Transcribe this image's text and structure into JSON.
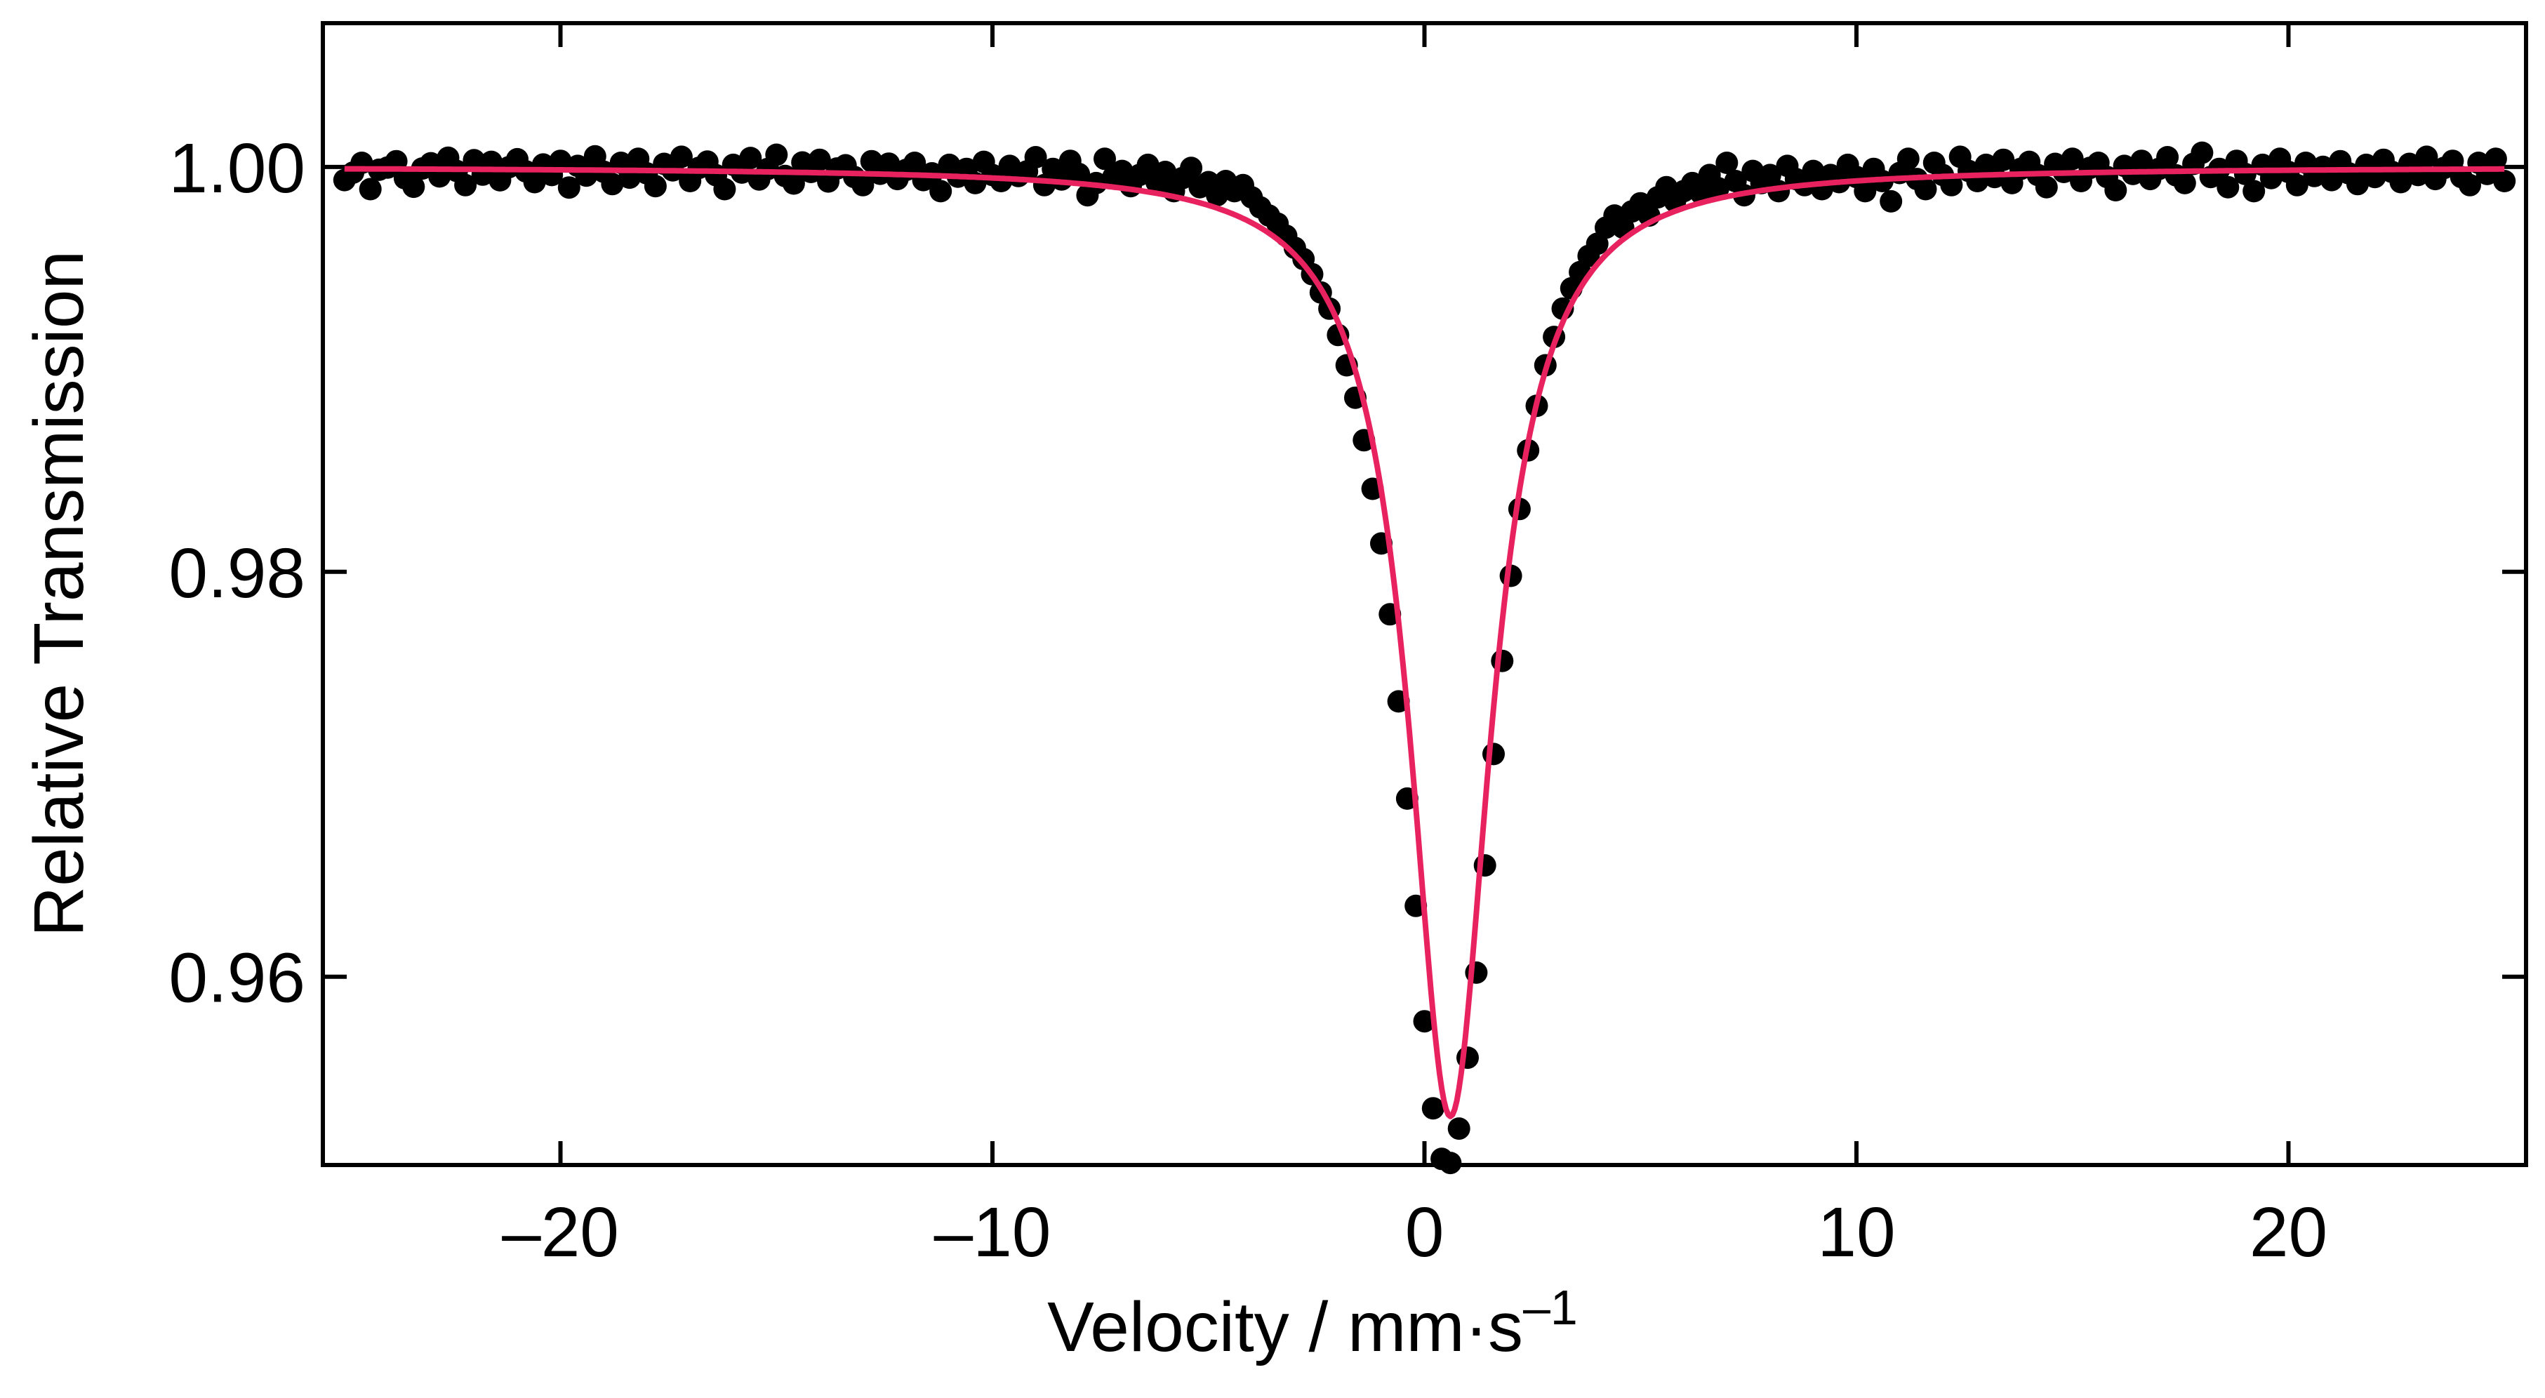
{
  "chart_data": {
    "type": "scatter",
    "title": "",
    "xlabel": "Velocity / mm·s",
    "xlabel_superscript": "–1",
    "ylabel": "Relative Transmission",
    "xlim": [
      -25.5,
      25.5
    ],
    "ylim": [
      0.9507,
      1.0071
    ],
    "x_ticks": [
      -20,
      -10,
      0,
      10,
      20
    ],
    "x_tick_labels": [
      "–20",
      "–10",
      "0",
      "10",
      "20"
    ],
    "y_ticks": [
      0.96,
      0.98,
      1.0
    ],
    "y_tick_labels": [
      "0.96",
      "0.98",
      "1.00"
    ],
    "grid": false,
    "legend": "none",
    "series": [
      {
        "kind": "points",
        "color": "#000000",
        "points": [
          [
            -25.0,
            0.99935
          ],
          [
            -24.8,
            0.99972
          ],
          [
            -24.6,
            1.0002
          ],
          [
            -24.4,
            0.9989
          ],
          [
            -24.2,
            0.99986
          ],
          [
            -24.0,
            0.99997
          ],
          [
            -23.8,
            1.00028
          ],
          [
            -23.6,
            0.99944
          ],
          [
            -23.4,
            0.99902
          ],
          [
            -23.2,
            0.99992
          ],
          [
            -23.0,
            1.00018
          ],
          [
            -22.8,
            0.99953
          ],
          [
            -22.6,
            1.00045
          ],
          [
            -22.4,
            0.9998
          ],
          [
            -22.2,
            0.9991
          ],
          [
            -22.0,
            1.00033
          ],
          [
            -21.8,
            0.99962
          ],
          [
            -21.6,
            1.00025
          ],
          [
            -21.4,
            0.99934
          ],
          [
            -21.2,
            0.99998
          ],
          [
            -21.0,
            1.00038
          ],
          [
            -20.8,
            0.99978
          ],
          [
            -20.6,
            0.99925
          ],
          [
            -20.4,
            1.00012
          ],
          [
            -20.2,
            0.9996
          ],
          [
            -20.0,
            1.0003
          ],
          [
            -19.8,
            0.99898
          ],
          [
            -19.6,
            1.00005
          ],
          [
            -19.4,
            0.99957
          ],
          [
            -19.2,
            1.00052
          ],
          [
            -19.0,
            0.99976
          ],
          [
            -18.8,
            0.99915
          ],
          [
            -18.6,
            1.0002
          ],
          [
            -18.4,
            0.99947
          ],
          [
            -18.2,
            1.0004
          ],
          [
            -18.0,
            0.99968
          ],
          [
            -17.8,
            0.99905
          ],
          [
            -17.6,
            1.00015
          ],
          [
            -17.4,
            0.99983
          ],
          [
            -17.2,
            1.0005
          ],
          [
            -17.0,
            0.9993
          ],
          [
            -16.8,
            0.99995
          ],
          [
            -16.6,
            1.00026
          ],
          [
            -16.4,
            0.99959
          ],
          [
            -16.2,
            0.9989
          ],
          [
            -16.0,
            1.0001
          ],
          [
            -15.8,
            0.99972
          ],
          [
            -15.6,
            1.00044
          ],
          [
            -15.4,
            0.99938
          ],
          [
            -15.2,
            0.9999
          ],
          [
            -15.0,
            1.0006
          ],
          [
            -14.8,
            0.99955
          ],
          [
            -14.6,
            0.99918
          ],
          [
            -14.4,
            1.00022
          ],
          [
            -14.2,
            0.99975
          ],
          [
            -14.0,
            1.00035
          ],
          [
            -13.8,
            0.99928
          ],
          [
            -13.6,
            0.99992
          ],
          [
            -13.4,
            1.00008
          ],
          [
            -13.2,
            0.9995
          ],
          [
            -13.0,
            0.9991
          ],
          [
            -12.8,
            1.00028
          ],
          [
            -12.6,
            0.99966
          ],
          [
            -12.4,
            1.00016
          ],
          [
            -12.2,
            0.9994
          ],
          [
            -12.0,
            0.99985
          ],
          [
            -11.8,
            1.0002
          ],
          [
            -11.6,
            0.99935
          ],
          [
            -11.4,
            0.99968
          ],
          [
            -11.2,
            0.9988
          ],
          [
            -11.0,
            1.0001
          ],
          [
            -10.8,
            0.99952
          ],
          [
            -10.6,
            0.9999
          ],
          [
            -10.4,
            0.9992
          ],
          [
            -10.2,
            1.00025
          ],
          [
            -10.0,
            0.9996
          ],
          [
            -9.8,
            0.9993
          ],
          [
            -9.6,
            1.00005
          ],
          [
            -9.4,
            0.99955
          ],
          [
            -9.2,
            0.99978
          ],
          [
            -9.0,
            1.00048
          ],
          [
            -8.8,
            0.9991
          ],
          [
            -8.6,
            0.9999
          ],
          [
            -8.4,
            0.99938
          ],
          [
            -8.2,
            1.0003
          ],
          [
            -8.0,
            0.99965
          ],
          [
            -7.8,
            0.9986
          ],
          [
            -7.6,
            0.9992
          ],
          [
            -7.4,
            1.0004
          ],
          [
            -7.2,
            0.9995
          ],
          [
            -7.0,
            0.9998
          ],
          [
            -6.8,
            0.99905
          ],
          [
            -6.6,
            0.9996
          ],
          [
            -6.4,
            1.0001
          ],
          [
            -6.2,
            0.99925
          ],
          [
            -6.0,
            0.99975
          ],
          [
            -5.8,
            0.9988
          ],
          [
            -5.6,
            0.99945
          ],
          [
            -5.4,
            0.99995
          ],
          [
            -5.2,
            0.999
          ],
          [
            -5.0,
            0.99925
          ],
          [
            -4.8,
            0.9986
          ],
          [
            -4.6,
            0.9993
          ],
          [
            -4.4,
            0.9988
          ],
          [
            -4.2,
            0.9991
          ],
          [
            -4.0,
            0.9985
          ],
          [
            -3.8,
            0.998
          ],
          [
            -3.6,
            0.9976
          ],
          [
            -3.4,
            0.9972
          ],
          [
            -3.2,
            0.9966
          ],
          [
            -3.0,
            0.996
          ],
          [
            -2.8,
            0.99545
          ],
          [
            -2.6,
            0.9947
          ],
          [
            -2.4,
            0.9938
          ],
          [
            -2.2,
            0.993
          ],
          [
            -2.0,
            0.9917
          ],
          [
            -1.8,
            0.9902
          ],
          [
            -1.6,
            0.9886
          ],
          [
            -1.4,
            0.9865
          ],
          [
            -1.2,
            0.9841
          ],
          [
            -1.0,
            0.9814
          ],
          [
            -0.8,
            0.9779
          ],
          [
            -0.6,
            0.9736
          ],
          [
            -0.4,
            0.9688
          ],
          [
            -0.2,
            0.9635
          ],
          [
            0.0,
            0.9578
          ],
          [
            0.2,
            0.9535
          ],
          [
            0.4,
            0.951
          ],
          [
            0.6,
            0.9508
          ],
          [
            0.8,
            0.9525
          ],
          [
            1.0,
            0.956
          ],
          [
            1.2,
            0.9602
          ],
          [
            1.4,
            0.9655
          ],
          [
            1.6,
            0.971
          ],
          [
            1.8,
            0.9756
          ],
          [
            2.0,
            0.9798
          ],
          [
            2.2,
            0.9831
          ],
          [
            2.4,
            0.986
          ],
          [
            2.6,
            0.9882
          ],
          [
            2.8,
            0.9902
          ],
          [
            3.0,
            0.9916
          ],
          [
            3.2,
            0.993
          ],
          [
            3.4,
            0.994
          ],
          [
            3.6,
            0.9948
          ],
          [
            3.8,
            0.9956
          ],
          [
            4.0,
            0.9962
          ],
          [
            4.2,
            0.997
          ],
          [
            4.4,
            0.9976
          ],
          [
            4.6,
            0.997
          ],
          [
            4.8,
            0.9978
          ],
          [
            5.0,
            0.9982
          ],
          [
            5.2,
            0.9976
          ],
          [
            5.4,
            0.9985
          ],
          [
            5.6,
            0.999
          ],
          [
            5.8,
            0.9983
          ],
          [
            6.0,
            0.9988
          ],
          [
            6.2,
            0.9992
          ],
          [
            6.4,
            0.9987
          ],
          [
            6.6,
            0.9996
          ],
          [
            6.8,
            0.99895
          ],
          [
            7.0,
            1.0002
          ],
          [
            7.2,
            0.9993
          ],
          [
            7.4,
            0.9986
          ],
          [
            7.6,
            0.9998
          ],
          [
            7.8,
            0.9992
          ],
          [
            8.0,
            0.9996
          ],
          [
            8.2,
            0.9988
          ],
          [
            8.4,
            1.00005
          ],
          [
            8.6,
            0.9994
          ],
          [
            8.8,
            0.9991
          ],
          [
            9.0,
            0.9998
          ],
          [
            9.2,
            0.9989
          ],
          [
            9.4,
            0.9996
          ],
          [
            9.6,
            0.99925
          ],
          [
            9.8,
            1.0001
          ],
          [
            10.0,
            0.9995
          ],
          [
            10.2,
            0.9988
          ],
          [
            10.4,
            0.9999
          ],
          [
            10.6,
            0.9993
          ],
          [
            10.8,
            0.9983
          ],
          [
            11.0,
            0.9997
          ],
          [
            11.2,
            1.0004
          ],
          [
            11.4,
            0.9994
          ],
          [
            11.6,
            0.9989
          ],
          [
            11.8,
            1.0002
          ],
          [
            12.0,
            0.9996
          ],
          [
            12.2,
            0.9991
          ],
          [
            12.4,
            1.0005
          ],
          [
            12.6,
            0.9998
          ],
          [
            12.8,
            0.9993
          ],
          [
            13.0,
            1.0001
          ],
          [
            13.2,
            0.9995
          ],
          [
            13.4,
            1.00035
          ],
          [
            13.6,
            0.9992
          ],
          [
            13.8,
            0.9999
          ],
          [
            14.0,
            1.00025
          ],
          [
            14.2,
            0.9996
          ],
          [
            14.4,
            0.999
          ],
          [
            14.6,
            1.00015
          ],
          [
            14.8,
            0.99975
          ],
          [
            15.0,
            1.0004
          ],
          [
            15.2,
            0.9993
          ],
          [
            15.4,
            0.99995
          ],
          [
            15.6,
            1.0002
          ],
          [
            15.8,
            0.9995
          ],
          [
            16.0,
            0.99885
          ],
          [
            16.2,
            1.00005
          ],
          [
            16.4,
            0.99965
          ],
          [
            16.6,
            1.0003
          ],
          [
            16.8,
            0.9994
          ],
          [
            17.0,
            0.9999
          ],
          [
            17.2,
            1.00048
          ],
          [
            17.4,
            0.99958
          ],
          [
            17.6,
            0.9992
          ],
          [
            17.8,
            1.00015
          ],
          [
            18.0,
            1.0007
          ],
          [
            18.2,
            0.9995
          ],
          [
            18.4,
            0.9999
          ],
          [
            18.6,
            0.999
          ],
          [
            18.8,
            1.0003
          ],
          [
            19.0,
            0.99965
          ],
          [
            19.2,
            0.9988
          ],
          [
            19.4,
            1.0001
          ],
          [
            19.6,
            0.99945
          ],
          [
            19.8,
            1.0004
          ],
          [
            20.0,
            0.99975
          ],
          [
            20.2,
            0.9991
          ],
          [
            20.4,
            1.0002
          ],
          [
            20.6,
            0.99955
          ],
          [
            20.8,
            1.0
          ],
          [
            21.0,
            0.99935
          ],
          [
            21.2,
            1.00028
          ],
          [
            21.4,
            0.99968
          ],
          [
            21.6,
            0.99915
          ],
          [
            21.8,
            1.0001
          ],
          [
            22.0,
            0.9995
          ],
          [
            22.2,
            1.00035
          ],
          [
            22.4,
            0.99975
          ],
          [
            22.6,
            0.99925
          ],
          [
            22.8,
            1.00015
          ],
          [
            23.0,
            0.9996
          ],
          [
            23.2,
            1.0005
          ],
          [
            23.4,
            0.9994
          ],
          [
            23.6,
            0.99995
          ],
          [
            23.8,
            1.0003
          ],
          [
            24.0,
            0.9995
          ],
          [
            24.2,
            0.9991
          ],
          [
            24.4,
            1.0002
          ],
          [
            24.6,
            0.99965
          ],
          [
            24.8,
            1.0004
          ],
          [
            25.0,
            0.9993
          ]
        ]
      },
      {
        "kind": "fit-line",
        "shape": "lorentzian",
        "color": "#e8215f",
        "baseline": 1.0,
        "center": 0.6,
        "minimum": 0.9531,
        "hwhm": 1.15,
        "x_range": [
          -25,
          25
        ]
      }
    ]
  }
}
